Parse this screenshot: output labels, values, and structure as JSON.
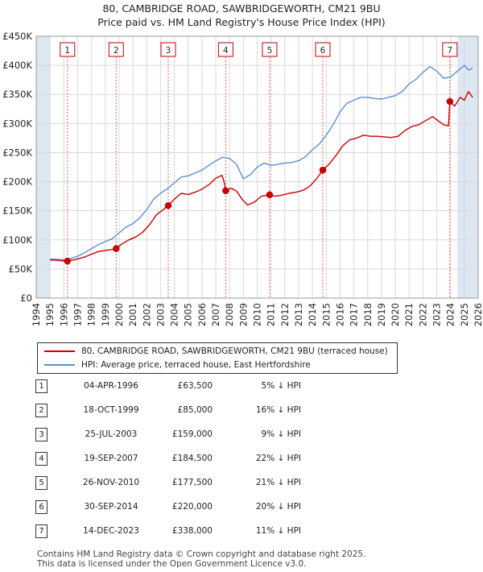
{
  "title_line1": "80, CAMBRIDGE ROAD, SAWBRIDGEWORTH, CM21 9BU",
  "title_line2": "Price paid vs. HM Land Registry's House Price Index (HPI)",
  "chart_data": {
    "type": "line",
    "xlim": [
      1994,
      2026
    ],
    "ylim": [
      0,
      450000
    ],
    "x_ticks": [
      1994,
      1995,
      1996,
      1997,
      1998,
      1999,
      2000,
      2001,
      2002,
      2003,
      2004,
      2005,
      2006,
      2007,
      2008,
      2009,
      2010,
      2011,
      2012,
      2013,
      2014,
      2015,
      2016,
      2017,
      2018,
      2019,
      2020,
      2021,
      2022,
      2023,
      2024,
      2025,
      2026
    ],
    "y_ticks": [
      {
        "value": 0,
        "label": "£0"
      },
      {
        "value": 50000,
        "label": "£50K"
      },
      {
        "value": 100000,
        "label": "£100K"
      },
      {
        "value": 150000,
        "label": "£150K"
      },
      {
        "value": 200000,
        "label": "£200K"
      },
      {
        "value": 250000,
        "label": "£250K"
      },
      {
        "value": 300000,
        "label": "£300K"
      },
      {
        "value": 350000,
        "label": "£350K"
      },
      {
        "value": 400000,
        "label": "£400K"
      },
      {
        "value": 450000,
        "label": "£450K"
      }
    ],
    "data_start_year": 1995,
    "forecast_start_year": 2024.5,
    "series": [
      {
        "name": "80, CAMBRIDGE ROAD, SAWBRIDGEWORTH, CM21 9BU (terraced house)",
        "color": "#cc0000",
        "points": [
          [
            1995.0,
            65500
          ],
          [
            1995.5,
            65000
          ],
          [
            1996.0,
            63700
          ],
          [
            1996.26,
            63500
          ],
          [
            1996.8,
            66000
          ],
          [
            1997.5,
            70500
          ],
          [
            1998.0,
            75500
          ],
          [
            1998.5,
            80000
          ],
          [
            1999.0,
            82000
          ],
          [
            1999.5,
            83500
          ],
          [
            1999.79,
            85000
          ],
          [
            2000.2,
            93000
          ],
          [
            2000.7,
            100000
          ],
          [
            2001.2,
            105000
          ],
          [
            2001.7,
            113000
          ],
          [
            2002.2,
            126000
          ],
          [
            2002.7,
            143000
          ],
          [
            2003.2,
            152000
          ],
          [
            2003.56,
            159000
          ],
          [
            2004.0,
            170000
          ],
          [
            2004.5,
            180000
          ],
          [
            2005.0,
            178000
          ],
          [
            2005.5,
            182000
          ],
          [
            2006.0,
            187000
          ],
          [
            2006.5,
            195000
          ],
          [
            2007.0,
            206000
          ],
          [
            2007.45,
            211000
          ],
          [
            2007.6,
            200000
          ],
          [
            2007.72,
            184500
          ],
          [
            2008.1,
            189000
          ],
          [
            2008.5,
            184000
          ],
          [
            2008.9,
            170000
          ],
          [
            2009.3,
            160000
          ],
          [
            2009.8,
            165000
          ],
          [
            2010.3,
            175000
          ],
          [
            2010.9,
            177500
          ],
          [
            2011.3,
            175000
          ],
          [
            2011.8,
            177000
          ],
          [
            2012.3,
            180000
          ],
          [
            2012.8,
            182000
          ],
          [
            2013.3,
            185000
          ],
          [
            2013.8,
            192000
          ],
          [
            2014.3,
            205000
          ],
          [
            2014.75,
            220000
          ],
          [
            2015.2,
            230000
          ],
          [
            2015.7,
            245000
          ],
          [
            2016.2,
            262000
          ],
          [
            2016.7,
            272000
          ],
          [
            2017.2,
            275000
          ],
          [
            2017.7,
            280000
          ],
          [
            2018.2,
            278000
          ],
          [
            2018.7,
            278000
          ],
          [
            2019.2,
            277000
          ],
          [
            2019.7,
            276000
          ],
          [
            2020.2,
            278000
          ],
          [
            2020.7,
            288000
          ],
          [
            2021.2,
            295000
          ],
          [
            2021.7,
            298000
          ],
          [
            2022.2,
            305000
          ],
          [
            2022.7,
            312000
          ],
          [
            2023.2,
            303000
          ],
          [
            2023.5,
            298000
          ],
          [
            2023.85,
            296000
          ],
          [
            2023.95,
            338000
          ],
          [
            2024.3,
            330000
          ],
          [
            2024.7,
            345000
          ],
          [
            2025.0,
            340000
          ],
          [
            2025.3,
            355000
          ],
          [
            2025.6,
            345000
          ]
        ]
      },
      {
        "name": "HPI: Average price, terraced house, East Hertfordshire",
        "color": "#5b8fd4",
        "points": [
          [
            1995.0,
            67000
          ],
          [
            1995.5,
            66500
          ],
          [
            1996.0,
            66000
          ],
          [
            1996.5,
            68000
          ],
          [
            1997.0,
            72000
          ],
          [
            1997.5,
            78000
          ],
          [
            1998.0,
            85000
          ],
          [
            1998.5,
            92000
          ],
          [
            1999.0,
            97000
          ],
          [
            1999.5,
            102000
          ],
          [
            2000.0,
            112000
          ],
          [
            2000.5,
            122000
          ],
          [
            2001.0,
            128000
          ],
          [
            2001.5,
            138000
          ],
          [
            2002.0,
            152000
          ],
          [
            2002.5,
            170000
          ],
          [
            2003.0,
            180000
          ],
          [
            2003.5,
            188000
          ],
          [
            2004.0,
            198000
          ],
          [
            2004.5,
            208000
          ],
          [
            2005.0,
            210000
          ],
          [
            2005.5,
            215000
          ],
          [
            2006.0,
            220000
          ],
          [
            2006.5,
            228000
          ],
          [
            2007.0,
            236000
          ],
          [
            2007.5,
            242000
          ],
          [
            2008.0,
            240000
          ],
          [
            2008.5,
            230000
          ],
          [
            2009.0,
            205000
          ],
          [
            2009.5,
            212000
          ],
          [
            2010.0,
            225000
          ],
          [
            2010.5,
            232000
          ],
          [
            2011.0,
            228000
          ],
          [
            2011.5,
            230000
          ],
          [
            2012.0,
            232000
          ],
          [
            2012.5,
            233000
          ],
          [
            2013.0,
            236000
          ],
          [
            2013.5,
            243000
          ],
          [
            2014.0,
            255000
          ],
          [
            2014.5,
            265000
          ],
          [
            2015.0,
            280000
          ],
          [
            2015.5,
            298000
          ],
          [
            2016.0,
            320000
          ],
          [
            2016.5,
            335000
          ],
          [
            2017.0,
            340000
          ],
          [
            2017.5,
            345000
          ],
          [
            2018.0,
            345000
          ],
          [
            2018.5,
            343000
          ],
          [
            2019.0,
            342000
          ],
          [
            2019.5,
            345000
          ],
          [
            2020.0,
            348000
          ],
          [
            2020.5,
            355000
          ],
          [
            2021.0,
            368000
          ],
          [
            2021.5,
            376000
          ],
          [
            2022.0,
            388000
          ],
          [
            2022.5,
            398000
          ],
          [
            2023.0,
            390000
          ],
          [
            2023.5,
            378000
          ],
          [
            2024.0,
            380000
          ],
          [
            2024.5,
            390000
          ],
          [
            2025.0,
            400000
          ],
          [
            2025.3,
            392000
          ],
          [
            2025.6,
            395000
          ]
        ]
      }
    ],
    "sales": [
      {
        "num": "1",
        "x": 1996.26,
        "y": 63500
      },
      {
        "num": "2",
        "x": 1999.79,
        "y": 85000
      },
      {
        "num": "3",
        "x": 2003.56,
        "y": 159000
      },
      {
        "num": "4",
        "x": 2007.72,
        "y": 184500
      },
      {
        "num": "5",
        "x": 2010.9,
        "y": 177500
      },
      {
        "num": "6",
        "x": 2014.75,
        "y": 220000
      },
      {
        "num": "7",
        "x": 2023.95,
        "y": 338000
      }
    ]
  },
  "legend": {
    "property_label": "80, CAMBRIDGE ROAD, SAWBRIDGEWORTH, CM21 9BU (terraced house)",
    "hpi_label": "HPI: Average price, terraced house, East Hertfordshire"
  },
  "table": [
    {
      "num": "1",
      "date": "04-APR-1996",
      "price": "£63,500",
      "hpi": "5% ↓ HPI"
    },
    {
      "num": "2",
      "date": "18-OCT-1999",
      "price": "£85,000",
      "hpi": "16% ↓ HPI"
    },
    {
      "num": "3",
      "date": "25-JUL-2003",
      "price": "£159,000",
      "hpi": "9% ↓ HPI"
    },
    {
      "num": "4",
      "date": "19-SEP-2007",
      "price": "£184,500",
      "hpi": "22% ↓ HPI"
    },
    {
      "num": "5",
      "date": "26-NOV-2010",
      "price": "£177,500",
      "hpi": "21% ↓ HPI"
    },
    {
      "num": "6",
      "date": "30-SEP-2014",
      "price": "£220,000",
      "hpi": "20% ↓ HPI"
    },
    {
      "num": "7",
      "date": "14-DEC-2023",
      "price": "£338,000",
      "hpi": "11% ↓ HPI"
    }
  ],
  "footer": {
    "line1": "Contains HM Land Registry data © Crown copyright and database right 2025.",
    "line2": "This data is licensed under the Open Government Licence v3.0."
  }
}
